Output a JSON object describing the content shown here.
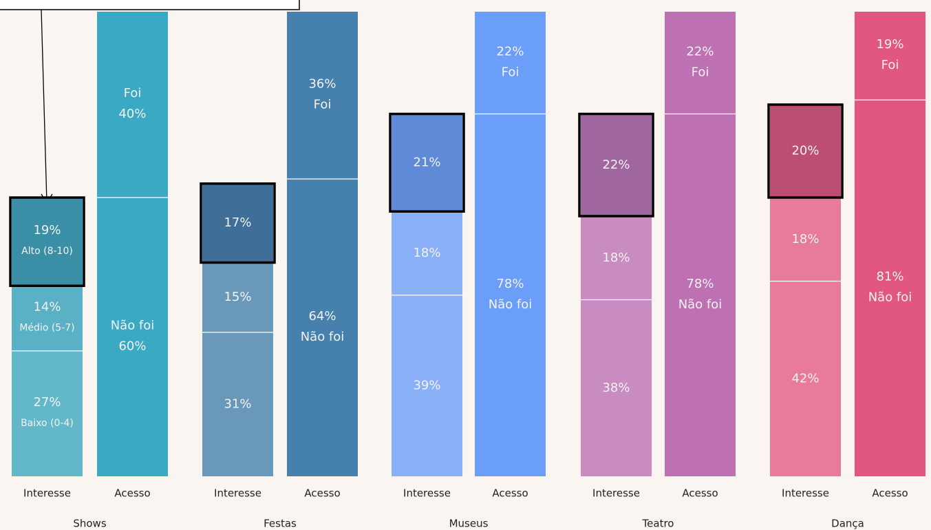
{
  "chart_data": {
    "type": "stacked_bar",
    "ylim": [
      0,
      100
    ],
    "groups": [
      {
        "name": "Shows",
        "bars": [
          {
            "name": "Interesse",
            "segments": [
              {
                "name": "Baixo (0-4)",
                "value": 27,
                "value_label": "27%",
                "color": "#62b7c9"
              },
              {
                "name": "Médio (5-7)",
                "value": 14,
                "value_label": "14%",
                "color": "#5ab1c6"
              },
              {
                "name": "Alto (8-10)",
                "value": 19,
                "value_label": "19%",
                "color": "#3a8fa6",
                "highlight": true
              }
            ]
          },
          {
            "name": "Acesso",
            "name_first": true,
            "segments": [
              {
                "name": "Não foi",
                "value": 60,
                "value_label": "60%",
                "color": "#3aa9c4"
              },
              {
                "name": "Foi",
                "value": 40,
                "value_label": "40%",
                "color": "#3aa9c4"
              }
            ]
          }
        ]
      },
      {
        "name": "Festas",
        "bars": [
          {
            "name": "Interesse",
            "segments": [
              {
                "value": 31,
                "value_label": "31%",
                "color": "#6a98bb"
              },
              {
                "value": 15,
                "value_label": "15%",
                "color": "#6a98bb"
              },
              {
                "value": 17,
                "value_label": "17%",
                "color": "#3f6f99",
                "highlight": true
              }
            ]
          },
          {
            "name": "Acesso",
            "segments": [
              {
                "name": "Não foi",
                "value": 64,
                "value_label": "64%",
                "color": "#4680ad"
              },
              {
                "name": "Foi",
                "value": 36,
                "value_label": "36%",
                "color": "#4680ad"
              }
            ]
          }
        ]
      },
      {
        "name": "Museus",
        "bars": [
          {
            "name": "Interesse",
            "segments": [
              {
                "value": 39,
                "value_label": "39%",
                "color": "#8ab0f8"
              },
              {
                "value": 18,
                "value_label": "18%",
                "color": "#8ab0f8"
              },
              {
                "value": 21,
                "value_label": "21%",
                "color": "#5e8ad8",
                "highlight": true
              }
            ]
          },
          {
            "name": "Acesso",
            "segments": [
              {
                "name": "Não foi",
                "value": 78,
                "value_label": "78%",
                "color": "#6b9ef9"
              },
              {
                "name": "Foi",
                "value": 22,
                "value_label": "22%",
                "color": "#6b9ef9"
              }
            ]
          }
        ]
      },
      {
        "name": "Teatro",
        "bars": [
          {
            "name": "Interesse",
            "segments": [
              {
                "value": 38,
                "value_label": "38%",
                "color": "#c98cc1"
              },
              {
                "value": 18,
                "value_label": "18%",
                "color": "#c98cc1"
              },
              {
                "value": 22,
                "value_label": "22%",
                "color": "#a0669f",
                "highlight": true
              }
            ]
          },
          {
            "name": "Acesso",
            "segments": [
              {
                "name": "Não foi",
                "value": 78,
                "value_label": "78%",
                "color": "#bd71b3"
              },
              {
                "name": "Foi",
                "value": 22,
                "value_label": "22%",
                "color": "#bd71b3"
              }
            ]
          }
        ]
      },
      {
        "name": "Dança",
        "bars": [
          {
            "name": "Interesse",
            "segments": [
              {
                "value": 42,
                "value_label": "42%",
                "color": "#e87a9a"
              },
              {
                "value": 18,
                "value_label": "18%",
                "color": "#e87a9a"
              },
              {
                "value": 20,
                "value_label": "20%",
                "color": "#bd4e73",
                "highlight": true
              }
            ]
          },
          {
            "name": "Acesso",
            "segments": [
              {
                "name": "Não foi",
                "value": 81,
                "value_label": "81%",
                "color": "#e25780"
              },
              {
                "name": "Foi",
                "value": 19,
                "value_label": "19%",
                "color": "#e25780"
              }
            ]
          }
        ]
      }
    ]
  }
}
